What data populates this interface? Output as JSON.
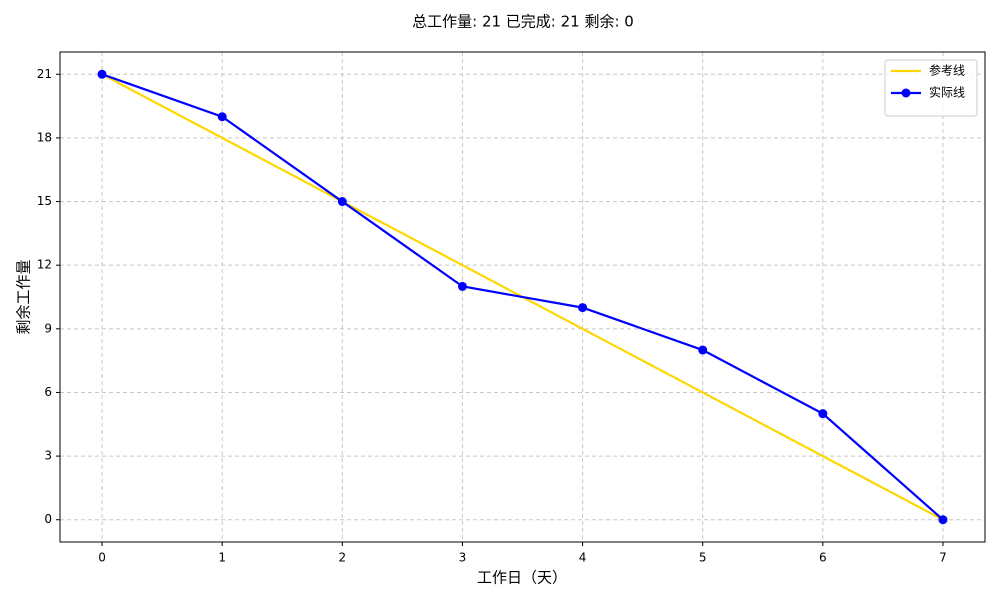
{
  "chart_data": {
    "type": "line",
    "title": "总工作量: 21  已完成: 21  剩余: 0",
    "x_label": "工作日（天）",
    "y_label": "剩余工作量",
    "x": [
      0,
      1,
      2,
      3,
      4,
      5,
      6,
      7
    ],
    "series": [
      {
        "name": "参考线",
        "color": "#ffd700",
        "marker": false,
        "values": [
          21,
          18,
          15,
          12,
          9,
          6,
          3,
          0
        ]
      },
      {
        "name": "实际线",
        "color": "#0000ff",
        "marker": true,
        "values": [
          21,
          19,
          15,
          11,
          10,
          8,
          5,
          0
        ]
      }
    ],
    "xlim": [
      -0.35,
      7.35
    ],
    "xticks": [
      0,
      1,
      2,
      3,
      4,
      5,
      6,
      7
    ],
    "ylim": [
      -1.05,
      22.05
    ],
    "yticks": [
      0,
      3,
      6,
      9,
      12,
      15,
      18,
      21
    ],
    "grid": true,
    "legend": "upper right"
  }
}
